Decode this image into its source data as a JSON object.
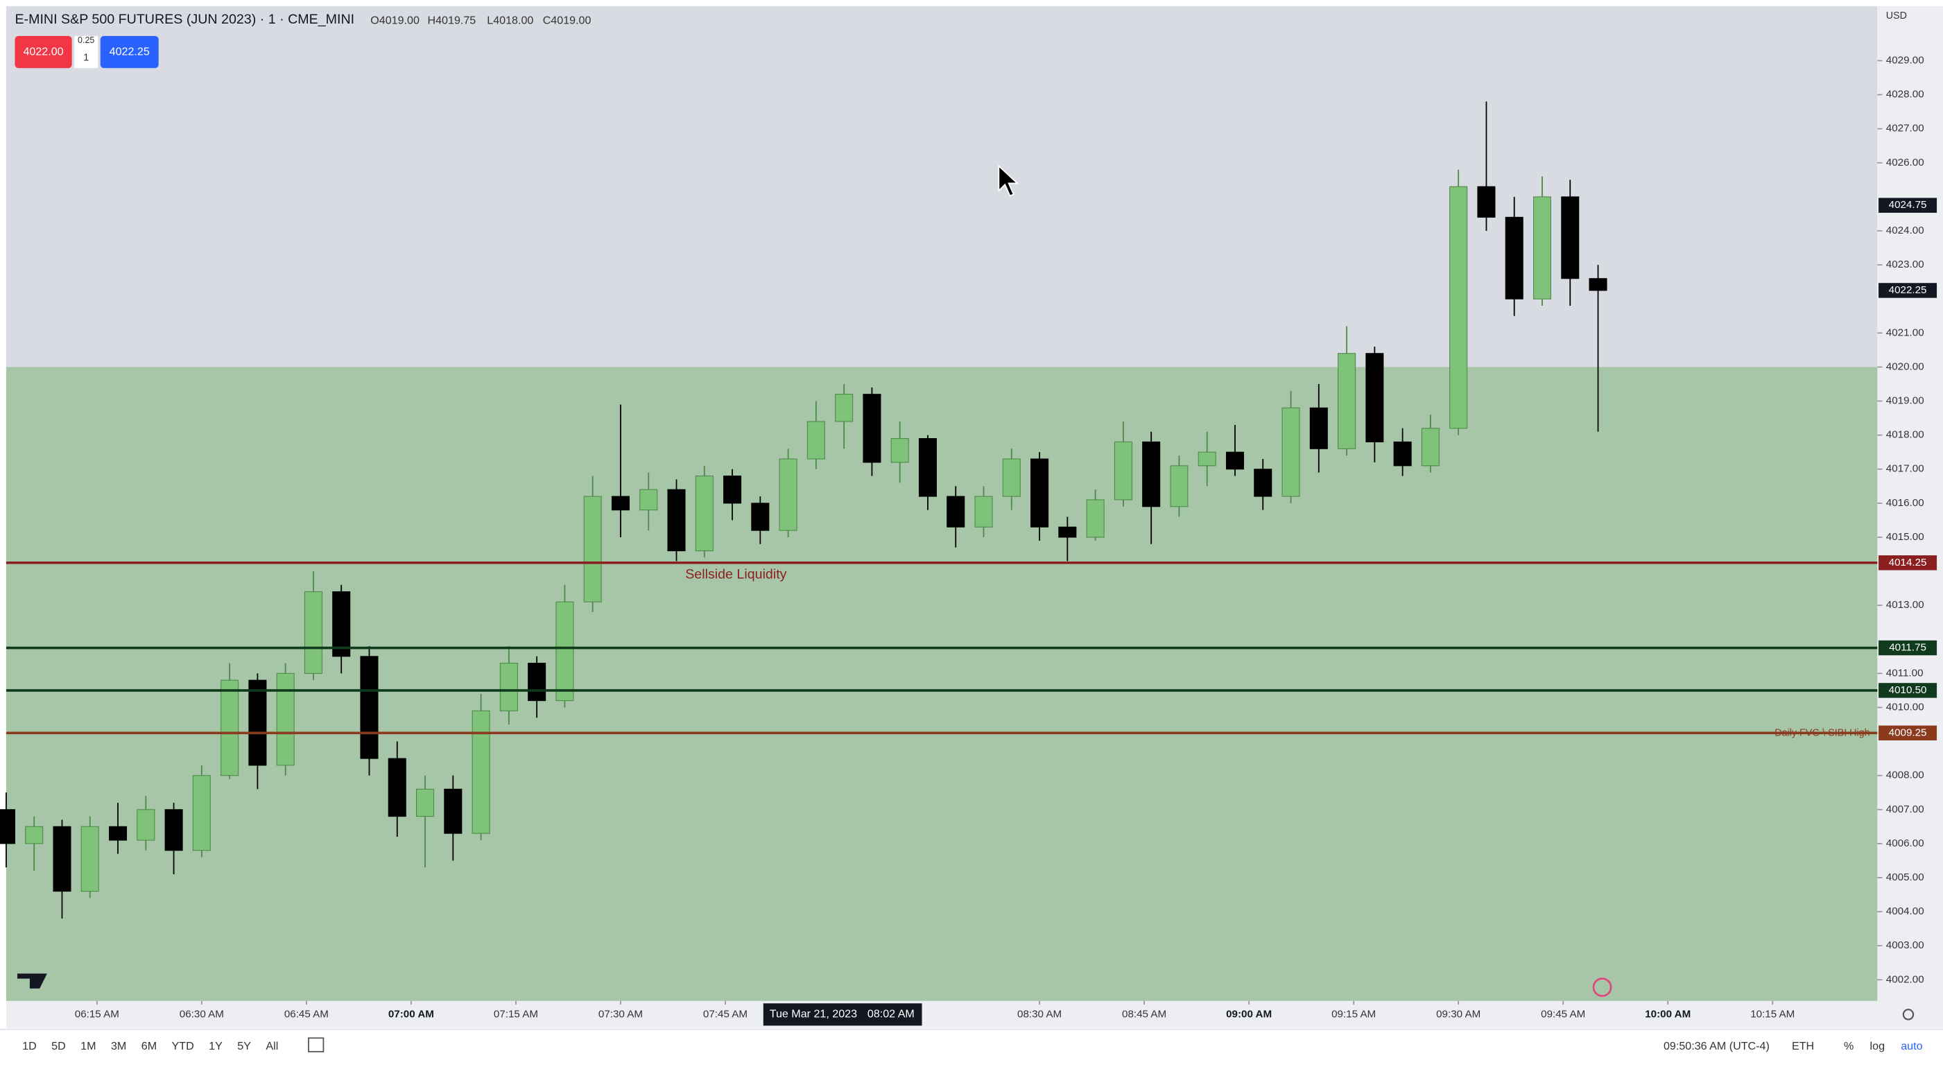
{
  "header": {
    "symbol": "E-MINI S&P 500 FUTURES (JUN 2023) · 1 · CME_MINI",
    "ohlc": [
      "O4019.00",
      "H4019.75",
      "L4018.00",
      "C4019.00"
    ],
    "sell": "4022.00",
    "tick_size": "0.25",
    "quantity": "1",
    "buy": "4022.25"
  },
  "currency": "USD",
  "chart_data": {
    "type": "candlestick",
    "x": [
      "06:02 AM",
      "06:06 AM",
      "06:10 AM",
      "06:14 AM",
      "06:18 AM",
      "06:22 AM",
      "06:26 AM",
      "06:30 AM",
      "06:34 AM",
      "06:38 AM",
      "06:42 AM",
      "06:46 AM",
      "06:50 AM",
      "06:54 AM",
      "06:58 AM",
      "07:02 AM",
      "07:06 AM",
      "07:10 AM",
      "07:14 AM",
      "07:18 AM",
      "07:22 AM",
      "07:26 AM",
      "07:30 AM",
      "07:34 AM",
      "07:38 AM",
      "07:42 AM",
      "07:46 AM",
      "07:50 AM",
      "07:54 AM",
      "07:58 AM",
      "08:02 AM",
      "08:06 AM",
      "08:10 AM",
      "08:14 AM",
      "08:18 AM",
      "08:22 AM",
      "08:26 AM",
      "08:30 AM",
      "08:34 AM",
      "08:38 AM",
      "08:42 AM",
      "08:46 AM",
      "08:50 AM",
      "08:54 AM",
      "08:58 AM",
      "09:02 AM",
      "09:06 AM",
      "09:10 AM",
      "09:14 AM",
      "09:18 AM",
      "09:22 AM",
      "09:26 AM",
      "09:30 AM",
      "09:34 AM",
      "09:38 AM",
      "09:42 AM",
      "09:46 AM",
      "09:50 AM"
    ],
    "open": [
      4007,
      4006,
      4006.5,
      4004.6,
      4006.5,
      4006.1,
      4007,
      4005.8,
      4008,
      4010.8,
      4008.3,
      4011,
      4013.4,
      4011.5,
      4008.5,
      4006.8,
      4007.6,
      4006.3,
      4009.9,
      4011.3,
      4010.2,
      4013.1,
      4016.2,
      4015.8,
      4016.4,
      4014.6,
      4016.8,
      4016,
      4015.2,
      4017.3,
      4018.4,
      4019.2,
      4017.2,
      4017.9,
      4016.2,
      4015.3,
      4016.2,
      4017.3,
      4015.3,
      4015,
      4016.1,
      4017.8,
      4015.9,
      4017.1,
      4017.5,
      4017,
      4016.2,
      4018.8,
      4017.6,
      4020.4,
      4017.8,
      4017.1,
      4018.2,
      4025.3,
      4024.4,
      4022,
      4025,
      4022.6
    ],
    "high": [
      4007.5,
      4006.8,
      4006.7,
      4006.8,
      4007.2,
      4007.4,
      4007.2,
      4008.3,
      4011.3,
      4011,
      4011.3,
      4014,
      4013.6,
      4011.8,
      4009,
      4008,
      4008,
      4010.4,
      4011.8,
      4011.5,
      4013.6,
      4016.8,
      4018.9,
      4016.9,
      4016.7,
      4017.1,
      4017,
      4016.2,
      4017.6,
      4019,
      4019.5,
      4019.4,
      4018.4,
      4018,
      4016.5,
      4016.5,
      4017.6,
      4017.5,
      4015.6,
      4016.4,
      4018.4,
      4018.1,
      4017.4,
      4018.1,
      4018.3,
      4017.3,
      4019.3,
      4019.5,
      4021.2,
      4020.6,
      4018.2,
      4018.6,
      4025.8,
      4027.8,
      4025,
      4025.6,
      4025.5,
      4023
    ],
    "low": [
      4005.3,
      4005.2,
      4003.8,
      4004.4,
      4005.7,
      4005.8,
      4005.1,
      4005.6,
      4007.9,
      4007.6,
      4008,
      4010.8,
      4011,
      4008,
      4006.2,
      4005.3,
      4005.5,
      4006.1,
      4009.5,
      4009.7,
      4010,
      4012.8,
      4015,
      4015.2,
      4014.3,
      4014.4,
      4015.5,
      4014.8,
      4015,
      4017,
      4017.6,
      4016.8,
      4016.6,
      4015.8,
      4014.7,
      4015,
      4015.8,
      4014.9,
      4014.3,
      4014.9,
      4015.9,
      4014.8,
      4015.6,
      4016.5,
      4016.8,
      4015.8,
      4016,
      4016.9,
      4017.4,
      4017.2,
      4016.8,
      4016.9,
      4018,
      4024,
      4021.5,
      4021.8,
      4021.8,
      4018.1
    ],
    "close": [
      4006,
      4006.5,
      4004.6,
      4006.5,
      4006.1,
      4007,
      4005.8,
      4008,
      4010.8,
      4008.3,
      4011,
      4013.4,
      4011.5,
      4008.5,
      4006.8,
      4007.6,
      4006.3,
      4009.9,
      4011.3,
      4010.2,
      4013.1,
      4016.2,
      4015.8,
      4016.4,
      4014.6,
      4016.8,
      4016,
      4015.2,
      4017.3,
      4018.4,
      4019.2,
      4017.2,
      4017.9,
      4016.2,
      4015.3,
      4016.2,
      4017.3,
      4015.3,
      4015,
      4016.1,
      4017.8,
      4015.9,
      4017.1,
      4017.5,
      4017,
      4016.2,
      4018.8,
      4017.6,
      4020.4,
      4017.8,
      4017.1,
      4018.2,
      4025.3,
      4024.4,
      4022,
      4025,
      4022.6,
      4022.25
    ],
    "up_color": "#7fc27a",
    "down_color": "#000000",
    "xlim": [
      "06:02 AM",
      "10:30 AM"
    ],
    "xticks": [
      "06:15 AM",
      "06:30 AM",
      "06:45 AM",
      "07:00 AM",
      "07:15 AM",
      "07:30 AM",
      "07:45 AM",
      "08:30 AM",
      "08:45 AM",
      "09:00 AM",
      "09:15 AM",
      "09:30 AM",
      "09:45 AM",
      "10:00 AM",
      "10:15 AM"
    ],
    "ylim": [
      4001.38,
      4030.6
    ],
    "yticks": [
      {
        "value": 4002,
        "label": "4002.00"
      },
      {
        "value": 4003,
        "label": "4003.00"
      },
      {
        "value": 4004,
        "label": "4004.00"
      },
      {
        "value": 4005,
        "label": "4005.00"
      },
      {
        "value": 4006,
        "label": "4006.00"
      },
      {
        "value": 4007,
        "label": "4007.00"
      },
      {
        "value": 4008,
        "label": "4008.00"
      },
      {
        "value": 4010,
        "label": "4010.00"
      },
      {
        "value": 4011,
        "label": "4011.00"
      },
      {
        "value": 4013,
        "label": "4013.00"
      },
      {
        "value": 4015,
        "label": "4015.00"
      },
      {
        "value": 4016,
        "label": "4016.00"
      },
      {
        "value": 4017,
        "label": "4017.00"
      },
      {
        "value": 4018,
        "label": "4018.00"
      },
      {
        "value": 4019,
        "label": "4019.00"
      },
      {
        "value": 4020,
        "label": "4020.00"
      },
      {
        "value": 4021,
        "label": "4021.00"
      },
      {
        "value": 4023,
        "label": "4023.00"
      },
      {
        "value": 4024,
        "label": "4024.00"
      },
      {
        "value": 4026,
        "label": "4026.00"
      },
      {
        "value": 4027,
        "label": "4027.00"
      },
      {
        "value": 4028,
        "label": "4028.00"
      },
      {
        "value": 4029,
        "label": "4029.00"
      }
    ],
    "zone": {
      "top": 4020,
      "color": "#a7c6a7"
    },
    "levels": [
      {
        "value": 4014.25,
        "label": "4014.25",
        "color": "#8b1e1e",
        "text": "Sellside Liquidity"
      },
      {
        "value": 4011.75,
        "label": "4011.75",
        "color": "#0f3a1c"
      },
      {
        "value": 4010.5,
        "label": "4010.50",
        "color": "#0f3a1c"
      },
      {
        "value": 4009.25,
        "label": "4009.25",
        "color": "#8b3a1e",
        "text": "Daily FVG \\ SIBI High"
      }
    ],
    "price_tags": [
      {
        "value": 4024.75,
        "label": "4024.75"
      },
      {
        "value": 4022.25,
        "label": "4022.25"
      }
    ],
    "crosshair": {
      "date": "Tue Mar 21, 2023",
      "time": "08:02 AM"
    }
  },
  "toolbar": {
    "ranges": [
      "1D",
      "5D",
      "1M",
      "3M",
      "6M",
      "YTD",
      "1Y",
      "5Y",
      "All"
    ],
    "clock": "09:50:36 AM (UTC-4)",
    "session": "ETH",
    "percent": "%",
    "log": "log",
    "auto": "auto"
  }
}
